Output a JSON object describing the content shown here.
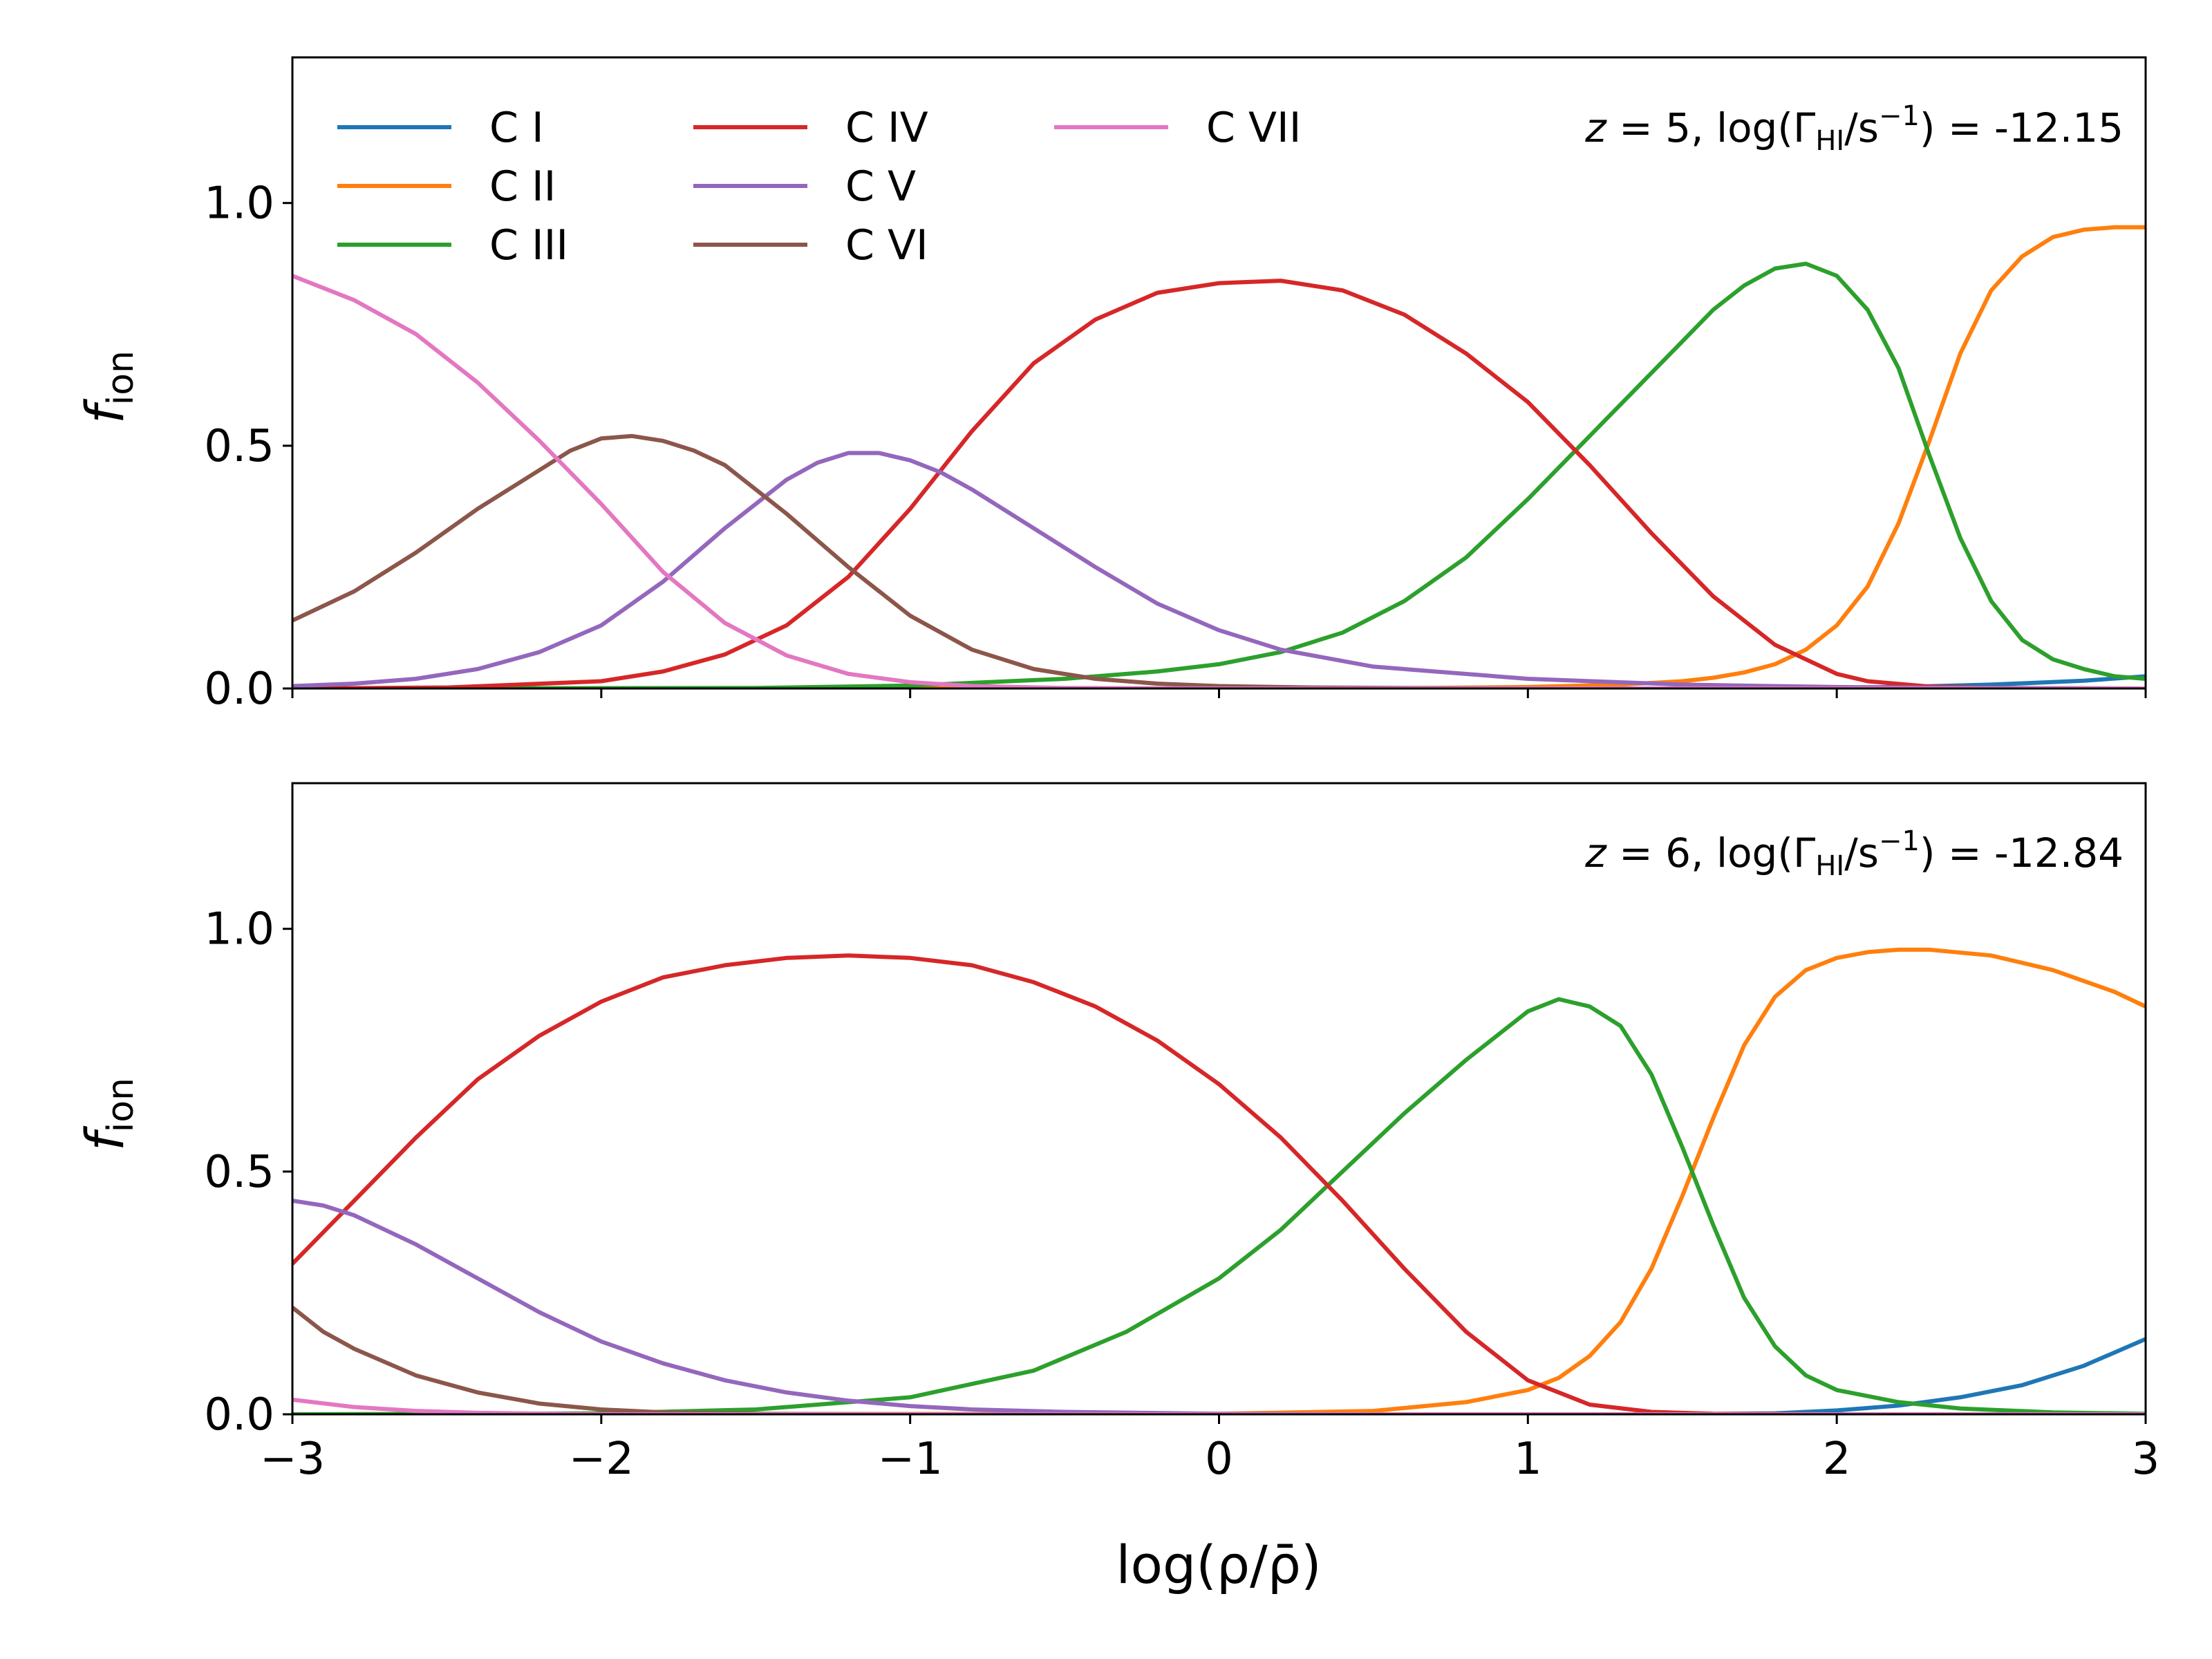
{
  "chart_data": [
    {
      "type": "line",
      "panel": "top",
      "annotation": {
        "z_label": "z",
        "z_text": " = 5, log(Γ",
        "sub": "HI",
        "mid": "/s",
        "sup": "−1",
        "tail": ") = -12.15"
      },
      "xlim": [
        -3,
        3
      ],
      "ylim": [
        0,
        1.3
      ],
      "yticks": [
        0.0,
        0.5,
        1.0
      ],
      "ytick_labels": [
        "0.0",
        "0.5",
        "1.0"
      ],
      "ylabel": {
        "main": "f",
        "sub": "ion"
      },
      "legend_placement": "upper-left",
      "series": [
        {
          "name": "C I",
          "color": "#1f77b4",
          "x": [
            -3,
            1.5,
            1.9,
            2.2,
            2.5,
            2.8,
            3.0
          ],
          "y": [
            0,
            0,
            0.001,
            0.003,
            0.008,
            0.016,
            0.025
          ]
        },
        {
          "name": "C II",
          "color": "#ff7f0e",
          "x": [
            -3,
            0.5,
            1.0,
            1.3,
            1.5,
            1.6,
            1.7,
            1.8,
            1.9,
            2.0,
            2.1,
            2.2,
            2.3,
            2.4,
            2.5,
            2.6,
            2.7,
            2.8,
            2.9,
            3.0
          ],
          "y": [
            0,
            0,
            0.003,
            0.008,
            0.015,
            0.022,
            0.033,
            0.05,
            0.08,
            0.13,
            0.21,
            0.34,
            0.51,
            0.69,
            0.82,
            0.89,
            0.93,
            0.945,
            0.95,
            0.95
          ]
        },
        {
          "name": "C III",
          "color": "#2ca02c",
          "x": [
            -3,
            -1.5,
            -1.0,
            -0.5,
            -0.2,
            0.0,
            0.2,
            0.4,
            0.6,
            0.8,
            1.0,
            1.2,
            1.4,
            1.5,
            1.6,
            1.7,
            1.8,
            1.9,
            2.0,
            2.1,
            2.2,
            2.3,
            2.4,
            2.5,
            2.6,
            2.7,
            2.8,
            2.9,
            3.0
          ],
          "y": [
            0,
            0.001,
            0.006,
            0.02,
            0.035,
            0.05,
            0.075,
            0.115,
            0.18,
            0.27,
            0.39,
            0.52,
            0.65,
            0.715,
            0.78,
            0.83,
            0.865,
            0.875,
            0.85,
            0.78,
            0.66,
            0.48,
            0.31,
            0.18,
            0.1,
            0.06,
            0.04,
            0.025,
            0.02
          ]
        },
        {
          "name": "C IV",
          "color": "#d62728",
          "x": [
            -3,
            -2.5,
            -2.0,
            -1.8,
            -1.6,
            -1.4,
            -1.2,
            -1.0,
            -0.8,
            -0.6,
            -0.4,
            -0.2,
            0.0,
            0.2,
            0.4,
            0.6,
            0.8,
            1.0,
            1.2,
            1.4,
            1.6,
            1.8,
            2.0,
            2.1,
            2.3,
            2.5,
            3.0
          ],
          "y": [
            0,
            0.002,
            0.015,
            0.035,
            0.07,
            0.13,
            0.23,
            0.37,
            0.53,
            0.67,
            0.76,
            0.815,
            0.835,
            0.84,
            0.82,
            0.77,
            0.69,
            0.59,
            0.46,
            0.32,
            0.19,
            0.09,
            0.03,
            0.015,
            0.004,
            0.001,
            0
          ]
        },
        {
          "name": "C V",
          "color": "#9467bd",
          "x": [
            -3,
            -2.8,
            -2.6,
            -2.4,
            -2.2,
            -2.0,
            -1.8,
            -1.6,
            -1.4,
            -1.3,
            -1.2,
            -1.1,
            -1.0,
            -0.9,
            -0.8,
            -0.6,
            -0.4,
            -0.2,
            0.0,
            0.2,
            0.5,
            1.0,
            1.5,
            2.0,
            2.5,
            3.0
          ],
          "y": [
            0.005,
            0.01,
            0.02,
            0.04,
            0.075,
            0.13,
            0.22,
            0.33,
            0.43,
            0.465,
            0.485,
            0.485,
            0.47,
            0.445,
            0.41,
            0.33,
            0.25,
            0.175,
            0.12,
            0.08,
            0.045,
            0.02,
            0.008,
            0.003,
            0.001,
            0
          ]
        },
        {
          "name": "C VI",
          "color": "#8c564b",
          "x": [
            -3,
            -2.8,
            -2.6,
            -2.4,
            -2.2,
            -2.1,
            -2.0,
            -1.9,
            -1.8,
            -1.7,
            -1.6,
            -1.4,
            -1.2,
            -1.0,
            -0.8,
            -0.6,
            -0.4,
            -0.2,
            0.0,
            0.3,
            0.6,
            1.0,
            1.5,
            2.0
          ],
          "y": [
            0.14,
            0.2,
            0.28,
            0.37,
            0.45,
            0.49,
            0.515,
            0.52,
            0.51,
            0.49,
            0.46,
            0.36,
            0.25,
            0.15,
            0.08,
            0.04,
            0.02,
            0.01,
            0.005,
            0.002,
            0.001,
            0,
            0,
            0
          ]
        },
        {
          "name": "C VII",
          "color": "#e377c2",
          "x": [
            -3,
            -2.8,
            -2.6,
            -2.4,
            -2.2,
            -2.0,
            -1.8,
            -1.6,
            -1.4,
            -1.2,
            -1.0,
            -0.8,
            -0.5,
            0.0,
            1.0,
            3.0
          ],
          "y": [
            0.85,
            0.8,
            0.73,
            0.63,
            0.51,
            0.38,
            0.24,
            0.135,
            0.068,
            0.03,
            0.013,
            0.005,
            0.001,
            0,
            0,
            0
          ]
        }
      ]
    },
    {
      "type": "line",
      "panel": "bottom",
      "annotation": {
        "z_label": "z",
        "z_text": " = 6, log(Γ",
        "sub": "HI",
        "mid": "/s",
        "sup": "−1",
        "tail": ") = -12.84"
      },
      "xlim": [
        -3,
        3
      ],
      "ylim": [
        0,
        1.3
      ],
      "xticks": [
        -3,
        -2,
        -1,
        0,
        1,
        2,
        3
      ],
      "xtick_labels": [
        "−3",
        "−2",
        "−1",
        "0",
        "1",
        "2",
        "3"
      ],
      "yticks": [
        0.0,
        0.5,
        1.0
      ],
      "ytick_labels": [
        "0.0",
        "0.5",
        "1.0"
      ],
      "xlabel": "log(ρ/ρ̄)",
      "ylabel": {
        "main": "f",
        "sub": "ion"
      },
      "series": [
        {
          "name": "C I",
          "color": "#1f77b4",
          "x": [
            -3,
            1.5,
            1.8,
            2.0,
            2.2,
            2.4,
            2.6,
            2.8,
            3.0
          ],
          "y": [
            0,
            0,
            0.002,
            0.008,
            0.018,
            0.035,
            0.06,
            0.1,
            0.155
          ]
        },
        {
          "name": "C II",
          "color": "#ff7f0e",
          "x": [
            -3,
            0.0,
            0.5,
            0.8,
            1.0,
            1.1,
            1.2,
            1.3,
            1.4,
            1.5,
            1.6,
            1.7,
            1.8,
            1.9,
            2.0,
            2.1,
            2.2,
            2.3,
            2.5,
            2.7,
            2.9,
            3.0
          ],
          "y": [
            0,
            0.001,
            0.007,
            0.025,
            0.05,
            0.075,
            0.12,
            0.19,
            0.3,
            0.45,
            0.61,
            0.76,
            0.86,
            0.915,
            0.94,
            0.952,
            0.957,
            0.957,
            0.945,
            0.915,
            0.87,
            0.84
          ]
        },
        {
          "name": "C III",
          "color": "#2ca02c",
          "x": [
            -3,
            -2.0,
            -1.5,
            -1.0,
            -0.6,
            -0.3,
            0.0,
            0.2,
            0.4,
            0.6,
            0.8,
            0.9,
            1.0,
            1.1,
            1.2,
            1.3,
            1.4,
            1.5,
            1.6,
            1.7,
            1.8,
            1.9,
            2.0,
            2.2,
            2.4,
            2.7,
            3.0
          ],
          "y": [
            0,
            0.002,
            0.01,
            0.035,
            0.09,
            0.17,
            0.28,
            0.38,
            0.5,
            0.62,
            0.73,
            0.78,
            0.83,
            0.855,
            0.84,
            0.8,
            0.7,
            0.55,
            0.39,
            0.24,
            0.14,
            0.08,
            0.05,
            0.025,
            0.012,
            0.004,
            0.001
          ]
        },
        {
          "name": "C IV",
          "color": "#d62728",
          "x": [
            -3,
            -2.8,
            -2.6,
            -2.4,
            -2.2,
            -2.0,
            -1.8,
            -1.6,
            -1.4,
            -1.2,
            -1.0,
            -0.8,
            -0.6,
            -0.4,
            -0.2,
            0.0,
            0.2,
            0.4,
            0.6,
            0.8,
            1.0,
            1.2,
            1.4,
            1.6,
            2.0,
            3.0
          ],
          "y": [
            0.31,
            0.44,
            0.57,
            0.69,
            0.78,
            0.85,
            0.9,
            0.925,
            0.94,
            0.945,
            0.94,
            0.925,
            0.89,
            0.84,
            0.77,
            0.68,
            0.57,
            0.44,
            0.3,
            0.17,
            0.07,
            0.02,
            0.005,
            0.001,
            0,
            0
          ]
        },
        {
          "name": "C V",
          "color": "#9467bd",
          "x": [
            -3,
            -2.9,
            -2.8,
            -2.6,
            -2.4,
            -2.2,
            -2.0,
            -1.8,
            -1.6,
            -1.4,
            -1.2,
            -1.0,
            -0.8,
            -0.5,
            0.0,
            0.5,
            1.0,
            3.0
          ],
          "y": [
            0.44,
            0.43,
            0.41,
            0.35,
            0.28,
            0.21,
            0.15,
            0.105,
            0.07,
            0.045,
            0.028,
            0.017,
            0.01,
            0.005,
            0.001,
            0,
            0,
            0
          ]
        },
        {
          "name": "C VI",
          "color": "#8c564b",
          "x": [
            -3,
            -2.9,
            -2.8,
            -2.6,
            -2.4,
            -2.2,
            -2.0,
            -1.8,
            -1.5,
            -1.0,
            3.0
          ],
          "y": [
            0.22,
            0.17,
            0.135,
            0.08,
            0.045,
            0.022,
            0.01,
            0.004,
            0.001,
            0,
            0
          ]
        },
        {
          "name": "C VII",
          "color": "#e377c2",
          "x": [
            -3,
            -2.8,
            -2.6,
            -2.4,
            -2.0,
            3.0
          ],
          "y": [
            0.03,
            0.015,
            0.007,
            0.003,
            0,
            0
          ]
        }
      ]
    }
  ]
}
